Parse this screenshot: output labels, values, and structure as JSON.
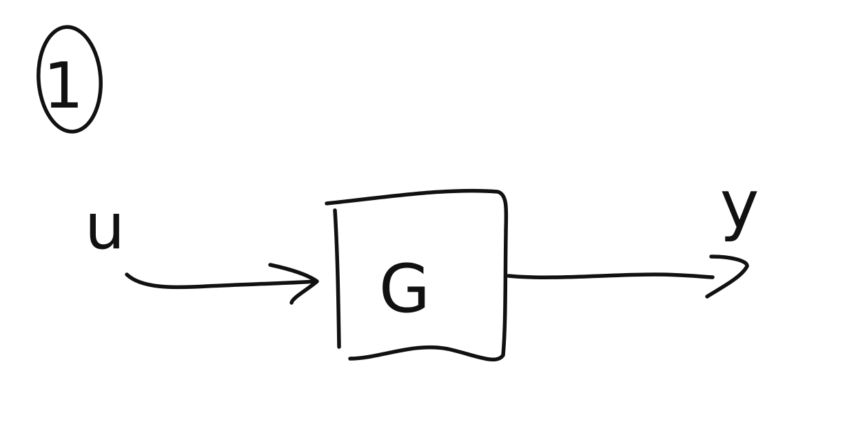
{
  "diagram": {
    "step_marker": "1",
    "input_signal": "u",
    "block_label": "G",
    "output_signal": "y"
  },
  "colors": {
    "ink": "#111111",
    "background": "#ffffff"
  }
}
